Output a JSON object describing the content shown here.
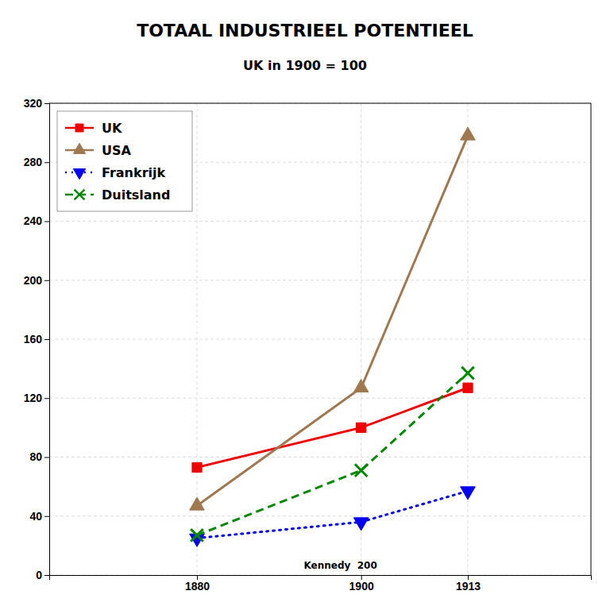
{
  "chart_data": {
    "type": "line",
    "title": "TOTAAL INDUSTRIEEL POTENTIEEL",
    "subtitle": "UK in 1900 = 100",
    "x": [
      1880,
      1900,
      1913
    ],
    "series": [
      {
        "name": "UK",
        "color": "#ee0000",
        "values": [
          73,
          100,
          127
        ],
        "marker": "square",
        "line_style": "solid"
      },
      {
        "name": "USA",
        "color": "#a07850",
        "values": [
          47,
          127,
          298
        ],
        "marker": "triangle-up",
        "line_style": "solid"
      },
      {
        "name": "Frankrijk",
        "color": "#0000ee",
        "values": [
          25,
          36,
          57
        ],
        "marker": "triangle-down",
        "line_style": "dotted"
      },
      {
        "name": "Duitsland",
        "color": "#008800",
        "values": [
          27,
          71,
          137
        ],
        "marker": "x",
        "line_style": "dashed"
      }
    ],
    "xlim": [
      1862,
      1928
    ],
    "xticks": [
      1880,
      1900,
      1913
    ],
    "ylim": [
      0,
      320
    ],
    "yticks": [
      0,
      40,
      80,
      120,
      160,
      200,
      240,
      280,
      320
    ],
    "grid": true,
    "legend": "upper-left",
    "annotation": "Kennedy  200"
  }
}
